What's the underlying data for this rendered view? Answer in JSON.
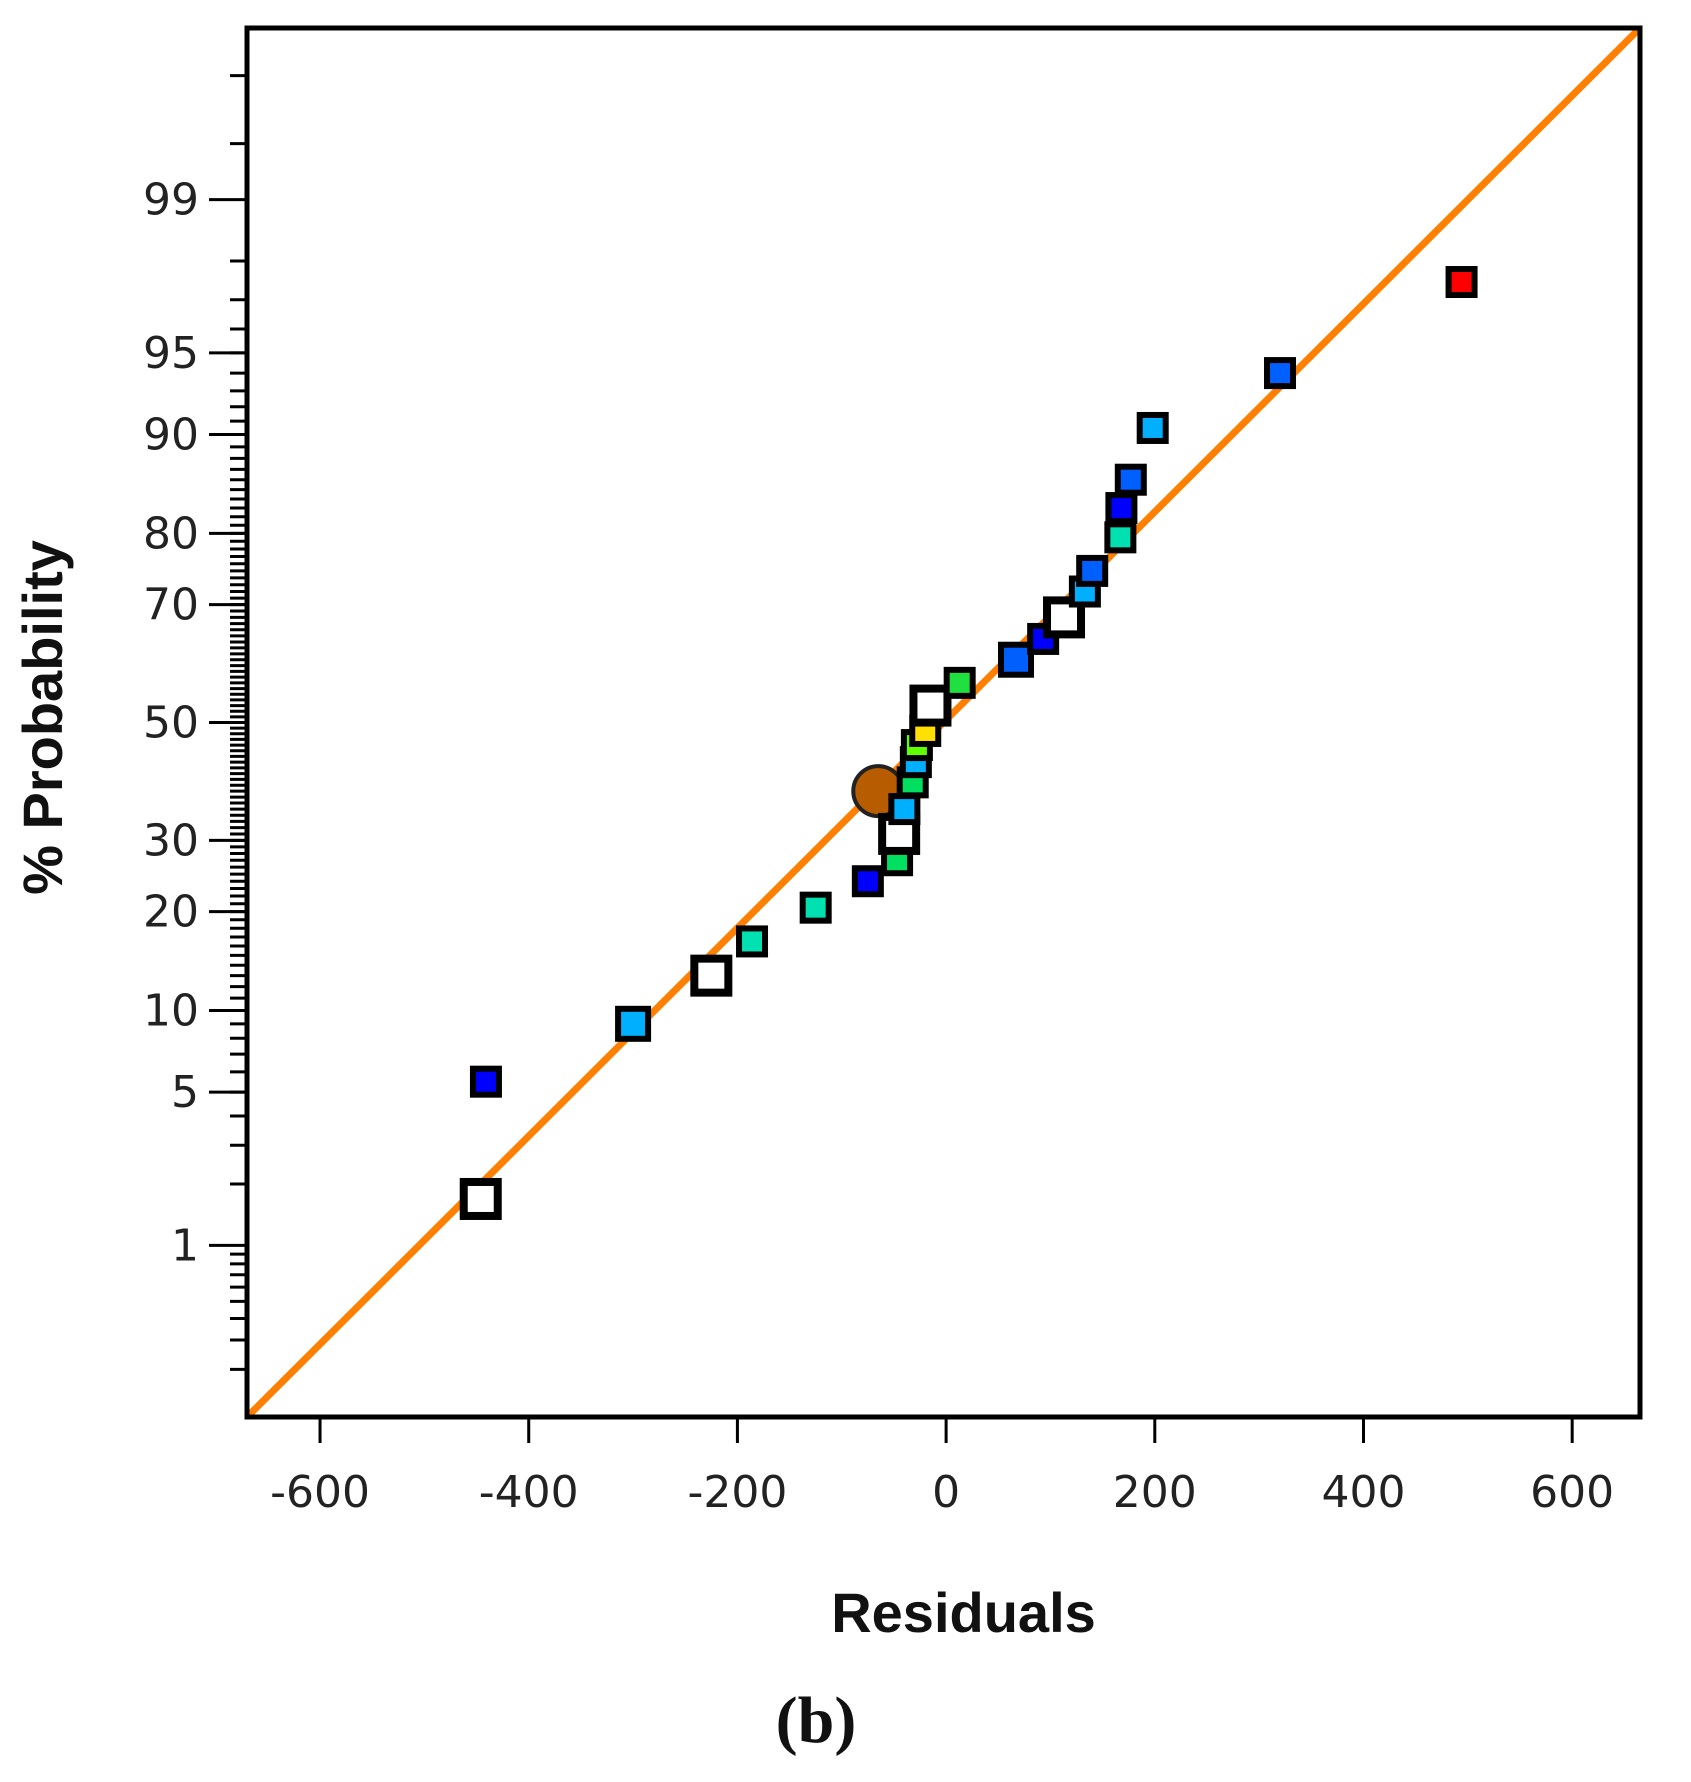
{
  "chart_data": {
    "type": "scatter",
    "subtype": "normal-probability-plot",
    "title": "",
    "xlabel": "Residuals",
    "ylabel": "% Probability",
    "caption": "(b)",
    "xlim": [
      -670,
      665
    ],
    "xticks": [
      -600,
      -400,
      -200,
      0,
      200,
      400,
      600
    ],
    "xtick_labels": [
      "-600",
      "-400",
      "-200",
      "0",
      "200",
      "400",
      "600"
    ],
    "ylim_probability": [
      0.1,
      99.9
    ],
    "yticks": [
      1,
      5,
      10,
      20,
      30,
      50,
      70,
      80,
      90,
      95,
      99
    ],
    "ytick_labels": [
      "1",
      "5",
      "10",
      "20",
      "30",
      "50",
      "70",
      "80",
      "90",
      "95",
      "99"
    ],
    "reference_line": {
      "from": [
        -670,
        0.1
      ],
      "to": [
        665,
        99.9
      ],
      "color": "#ff7f00"
    },
    "points": [
      {
        "x": -446,
        "p": 1.7,
        "color": "#ffffff",
        "size": "large"
      },
      {
        "x": -441,
        "p": 5.5,
        "color": "#0000ff",
        "size": "small"
      },
      {
        "x": -300,
        "p": 9,
        "color": "#00b0ff",
        "size": "medium"
      },
      {
        "x": -225,
        "p": 13,
        "color": "#ffffff",
        "size": "large"
      },
      {
        "x": -186,
        "p": 16.5,
        "color": "#00e0b0",
        "size": "small"
      },
      {
        "x": -125,
        "p": 20.5,
        "color": "#00e0b0",
        "size": "small"
      },
      {
        "x": -75,
        "p": 24,
        "color": "#0000ff",
        "size": "small"
      },
      {
        "x": -47,
        "p": 27,
        "color": "#00e060",
        "size": "small"
      },
      {
        "x": -45,
        "p": 31,
        "color": "#ffffff",
        "size": "large"
      },
      {
        "x": -40,
        "p": 35,
        "color": "#00b0ff",
        "size": "small"
      },
      {
        "x": -32,
        "p": 39.5,
        "color": "#00e060",
        "size": "small"
      },
      {
        "x": -29,
        "p": 43,
        "color": "#00b0ff",
        "size": "small"
      },
      {
        "x": -28,
        "p": 46,
        "color": "#60ff00",
        "size": "small"
      },
      {
        "x": -20,
        "p": 48.5,
        "color": "#ffe000",
        "size": "small"
      },
      {
        "x": -15,
        "p": 53,
        "color": "#ffffff",
        "size": "large"
      },
      {
        "x": 13,
        "p": 57,
        "color": "#20e040",
        "size": "small"
      },
      {
        "x": 67,
        "p": 61,
        "color": "#0060ff",
        "size": "medium"
      },
      {
        "x": 93,
        "p": 64.5,
        "color": "#0000ff",
        "size": "small"
      },
      {
        "x": 113,
        "p": 68,
        "color": "#ffffff",
        "size": "large"
      },
      {
        "x": 133,
        "p": 72,
        "color": "#00b0ff",
        "size": "small"
      },
      {
        "x": 140,
        "p": 75,
        "color": "#0060ff",
        "size": "small"
      },
      {
        "x": 167,
        "p": 79.5,
        "color": "#00e0b0",
        "size": "small"
      },
      {
        "x": 168,
        "p": 83,
        "color": "#0000ff",
        "size": "small"
      },
      {
        "x": 177,
        "p": 86,
        "color": "#0060ff",
        "size": "small"
      },
      {
        "x": 198,
        "p": 90.5,
        "color": "#00b0ff",
        "size": "small"
      },
      {
        "x": 320,
        "p": 94,
        "color": "#0060ff",
        "size": "small"
      },
      {
        "x": 494,
        "p": 97.5,
        "color": "#ff0000",
        "size": "small"
      }
    ],
    "highlight_point": {
      "x": -65,
      "p": 38,
      "color": "#b85c00",
      "shape": "circle"
    }
  }
}
